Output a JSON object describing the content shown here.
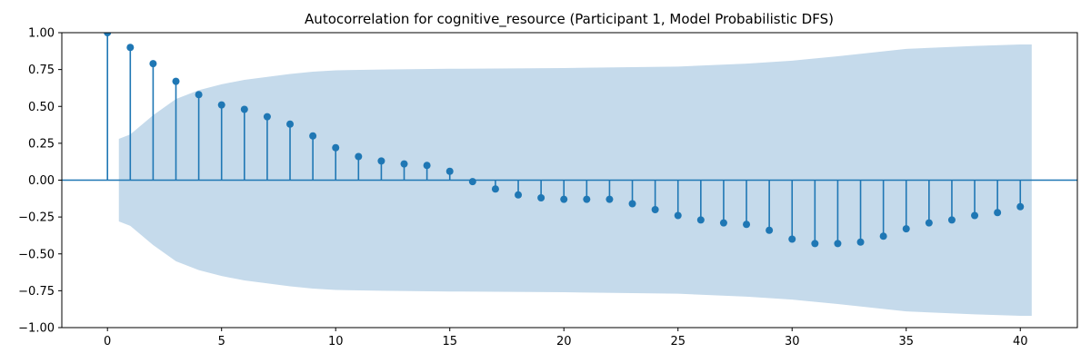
{
  "chart_data": {
    "type": "stem",
    "title": "Autocorrelation for cognitive_resource (Participant 1, Model Probabilistic DFS)",
    "xlabel": "",
    "ylabel": "",
    "xlim": [
      -2,
      42.5
    ],
    "ylim": [
      -1.0,
      1.0
    ],
    "xticks": [
      0,
      5,
      10,
      15,
      20,
      25,
      30,
      35,
      40
    ],
    "xtick_labels": [
      "0",
      "5",
      "10",
      "15",
      "20",
      "25",
      "30",
      "35",
      "40"
    ],
    "yticks": [
      -1.0,
      -0.75,
      -0.5,
      -0.25,
      0.0,
      0.25,
      0.5,
      0.75,
      1.0
    ],
    "ytick_labels": [
      "−1.00",
      "−0.75",
      "−0.50",
      "−0.25",
      "0.00",
      "0.25",
      "0.50",
      "0.75",
      "1.00"
    ],
    "grid": false,
    "lags": [
      0,
      1,
      2,
      3,
      4,
      5,
      6,
      7,
      8,
      9,
      10,
      11,
      12,
      13,
      14,
      15,
      16,
      17,
      18,
      19,
      20,
      21,
      22,
      23,
      24,
      25,
      26,
      27,
      28,
      29,
      30,
      31,
      32,
      33,
      34,
      35,
      36,
      37,
      38,
      39,
      40
    ],
    "acf": [
      1.0,
      0.9,
      0.79,
      0.67,
      0.58,
      0.51,
      0.48,
      0.43,
      0.38,
      0.3,
      0.22,
      0.16,
      0.13,
      0.11,
      0.1,
      0.06,
      -0.01,
      -0.06,
      -0.1,
      -0.12,
      -0.13,
      -0.13,
      -0.13,
      -0.16,
      -0.2,
      -0.24,
      -0.27,
      -0.29,
      -0.3,
      -0.34,
      -0.4,
      -0.43,
      -0.43,
      -0.42,
      -0.38,
      -0.33,
      -0.29,
      -0.27,
      -0.24,
      -0.22,
      -0.18
    ],
    "confidence_band": {
      "lags": [
        0.5,
        1,
        2,
        3,
        4,
        5,
        6,
        7,
        8,
        9,
        10,
        12,
        15,
        20,
        25,
        28,
        30,
        32,
        35,
        38,
        40,
        40.5
      ],
      "upper": [
        0.28,
        0.31,
        0.44,
        0.55,
        0.61,
        0.65,
        0.68,
        0.7,
        0.72,
        0.735,
        0.745,
        0.75,
        0.755,
        0.76,
        0.77,
        0.79,
        0.81,
        0.84,
        0.89,
        0.91,
        0.92,
        0.92
      ]
    },
    "colors": {
      "stem": "#1f77b4",
      "band": "#c5daeb",
      "baseline": "#1f77b4",
      "axes": "#000000"
    }
  }
}
